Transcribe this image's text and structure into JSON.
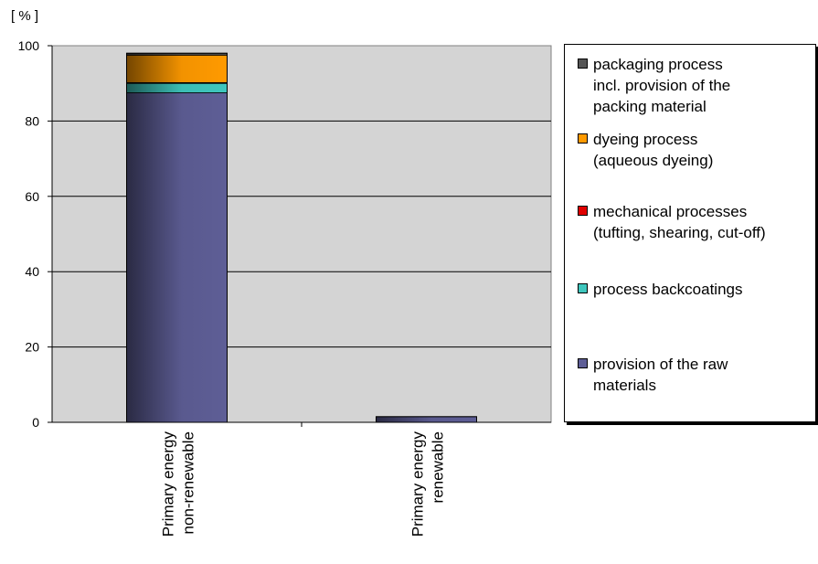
{
  "chart_data": {
    "type": "bar",
    "stacked": true,
    "ylabel": "[ % ]",
    "ylim": [
      0,
      100
    ],
    "yticks": [
      0,
      20,
      40,
      60,
      80,
      100
    ],
    "grid": true,
    "plot_background": "#d4d4d4",
    "legend_position": "right",
    "categories": [
      "Primary energy\nnon-renewable",
      "Primary energy\nrenewable"
    ],
    "series": [
      {
        "name": "provision of the raw materials",
        "color": "#5e5e96",
        "values": [
          87.5,
          1.5
        ]
      },
      {
        "name": "process backcoatings",
        "color": "#3fc7be",
        "values": [
          2.5,
          0.0
        ]
      },
      {
        "name": "mechanical processes (tufting, shearing, cut-off)",
        "color": "#e00000",
        "values": [
          0.2,
          0.0
        ]
      },
      {
        "name": "dyeing process (aqueous dyeing)",
        "color": "#ff9a00",
        "values": [
          7.3,
          0.0
        ]
      },
      {
        "name": "packaging process incl. provision of the packing material",
        "color": "#555555",
        "values": [
          0.5,
          0.0
        ]
      }
    ]
  },
  "legend": {
    "items": [
      {
        "label": "packaging process\nincl. provision of the\npacking material",
        "color": "#555555"
      },
      {
        "label": "dyeing process\n(aqueous dyeing)",
        "color": "#ff9a00"
      },
      {
        "label": "mechanical processes\n(tufting, shearing, cut-off)",
        "color": "#e00000"
      },
      {
        "label": "process backcoatings",
        "color": "#3fc7be"
      },
      {
        "label": "provision of the raw\nmaterials",
        "color": "#5e5e96"
      }
    ]
  }
}
